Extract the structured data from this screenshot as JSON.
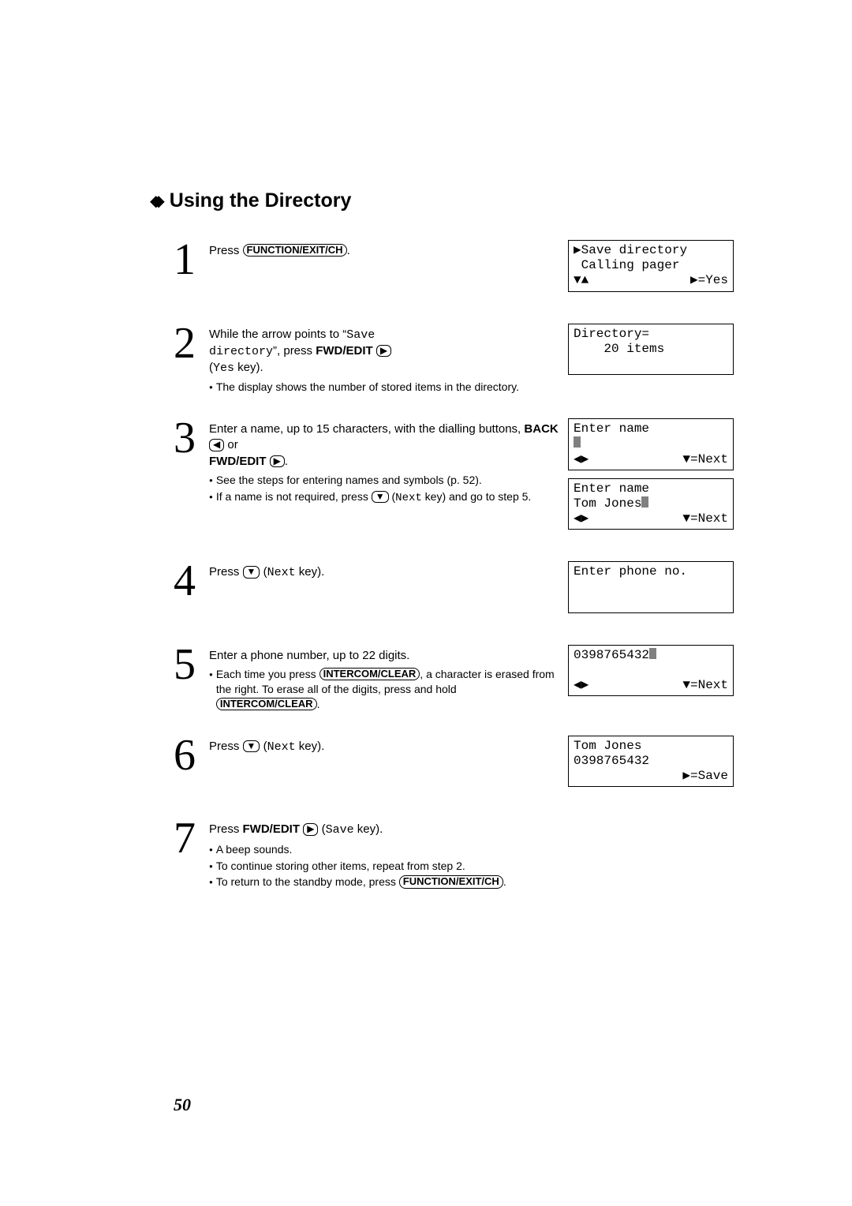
{
  "title": "Using the Directory",
  "steps": {
    "s1": {
      "num": "1",
      "press_label": "Press ",
      "key": "FUNCTION/EXIT/CH",
      "dot": ".",
      "lcd": {
        "l1_prefix": "▶",
        "l1": "Save directory",
        "l2": " Calling pager",
        "nav_left": "▼▲",
        "nav_right": "▶=Yes"
      }
    },
    "s2": {
      "num": "2",
      "p1a": "While the arrow points to “",
      "mono1": "Save",
      "p1b": "directory",
      "p1c": "”, press ",
      "key": "FWD/EDIT",
      "arrow": "▶",
      "p1d": "(",
      "mono2": "Yes",
      "p1e": " key).",
      "b1": "The display shows the number of stored items in the directory.",
      "lcd": {
        "l1": "Directory=",
        "l2": "    20 items"
      }
    },
    "s3": {
      "num": "3",
      "p1a": "Enter a name, up to 15 characters, with the dialling buttons, ",
      "key1": "BACK",
      "arrow1": "◀",
      "p1b": " or ",
      "key2": "FWD/EDIT",
      "arrow2": "▶",
      "p1c": ".",
      "b1": "See the steps for entering names and symbols (p. 52).",
      "b2a": "If a name is not required, press ",
      "arrow3": "▼",
      "b2b": " (",
      "mono": "Next",
      "b2c": " key) and go to step 5.",
      "lcd1": {
        "l1": "Enter name",
        "nav_left": "◀▶",
        "nav_right": "▼=Next"
      },
      "lcd2": {
        "l1": "Enter name",
        "l2": "Tom Jones",
        "nav_left": "◀▶",
        "nav_right": "▼=Next"
      }
    },
    "s4": {
      "num": "4",
      "p1a": "Press ",
      "arrow": "▼",
      "p1b": " (",
      "mono": "Next",
      "p1c": " key).",
      "lcd": {
        "l1": "Enter phone no."
      }
    },
    "s5": {
      "num": "5",
      "p1": "Enter a phone number, up to 22 digits.",
      "b1a": "Each time you press ",
      "key": "INTERCOM/CLEAR",
      "b1b": ", a character is erased from the right. To erase all of the digits, press and hold ",
      "key2": "INTERCOM/CLEAR",
      "b1c": ".",
      "lcd": {
        "l1": "0398765432",
        "nav_left": "◀▶",
        "nav_right": "▼=Next"
      }
    },
    "s6": {
      "num": "6",
      "p1a": "Press ",
      "arrow": "▼",
      "p1b": " (",
      "mono": "Next",
      "p1c": " key).",
      "lcd": {
        "l1": "Tom Jones",
        "l2": "0398765432",
        "nav_right": "▶=Save"
      }
    },
    "s7": {
      "num": "7",
      "p1a": "Press ",
      "key": "FWD/EDIT",
      "arrow": "▶",
      "p1b": " (",
      "mono": "Save",
      "p1c": " key).",
      "b1": "A beep sounds.",
      "b2": "To continue storing other items, repeat from step 2.",
      "b3a": "To return to the standby mode, press ",
      "key2": "FUNCTION/EXIT/CH",
      "b3b": "."
    }
  },
  "page_number": "50"
}
